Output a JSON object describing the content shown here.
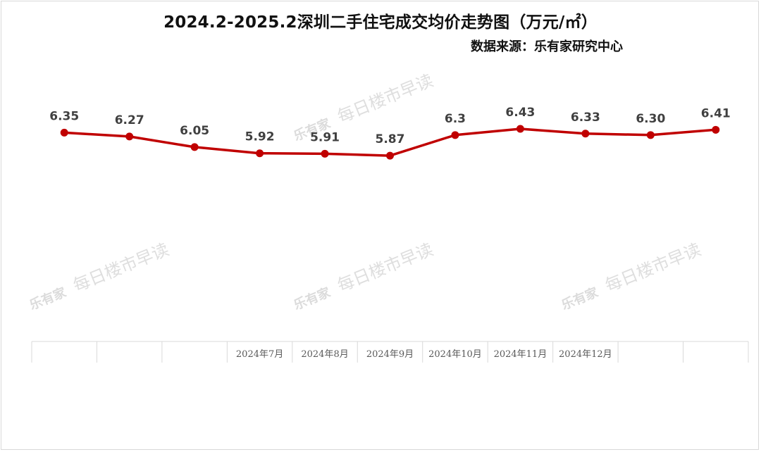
{
  "chart_data": {
    "type": "line",
    "title": "2024.2-2025.2深圳二手住宅成交均价走势图（万元/㎡）",
    "subtitle": "数据来源：乐有家研究中心",
    "categories": [
      "",
      "",
      "",
      "2024年7月",
      "2024年8月",
      "2024年9月",
      "2024年10月",
      "2024年11月",
      "2024年12月",
      "",
      ""
    ],
    "series": [
      {
        "values": [
          6.35,
          6.27,
          6.05,
          5.92,
          5.91,
          5.87,
          6.3,
          6.43,
          6.33,
          6.3,
          6.41
        ],
        "labels": [
          "6.35",
          "6.27",
          "6.05",
          "5.92",
          "5.91",
          "5.87",
          "6.3",
          "6.43",
          "6.33",
          "6.30",
          "6.41"
        ],
        "color": "#c00000"
      }
    ],
    "ylim": [
      2.0,
      7.5
    ],
    "grid": false,
    "legend": "none"
  },
  "watermark": {
    "logo": "乐有家",
    "text": "每日楼市早读"
  },
  "colors": {
    "line": "#c00000",
    "label": "#404040",
    "axis": "#d9d9d9"
  }
}
